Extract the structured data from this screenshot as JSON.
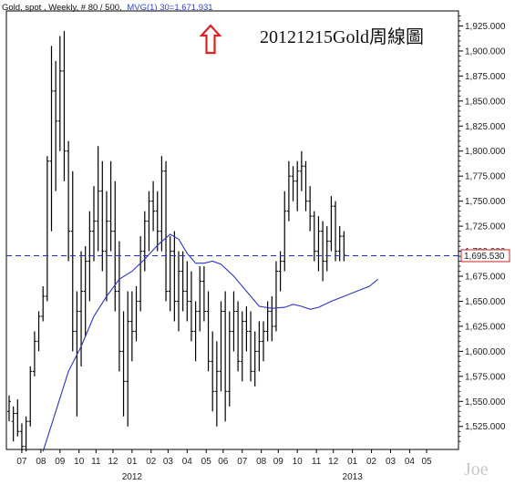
{
  "chart_data": {
    "type": "bar",
    "subtype": "ohlc-bars",
    "header": {
      "instrument": "Gold, spot , Weekly, # 80 / 500,",
      "indicator": "MVG(1) 30=1,671.931"
    },
    "title": "20121215Gold周線圖",
    "watermark": "Joe",
    "ylim": [
      1502,
      1940
    ],
    "y_ticks": [
      {
        "v": 1925,
        "label": "1,925.000"
      },
      {
        "v": 1900,
        "label": "1,900.000"
      },
      {
        "v": 1875,
        "label": "1,875.000"
      },
      {
        "v": 1850,
        "label": "1,850.000"
      },
      {
        "v": 1825,
        "label": "1,825.000"
      },
      {
        "v": 1800,
        "label": "1,800.000"
      },
      {
        "v": 1775,
        "label": "1,775.000"
      },
      {
        "v": 1750,
        "label": "1,750.000"
      },
      {
        "v": 1725,
        "label": "1,725.000"
      },
      {
        "v": 1700,
        "label": "1,700.000"
      },
      {
        "v": 1675,
        "label": "1,675.000"
      },
      {
        "v": 1650,
        "label": "1,650.000"
      },
      {
        "v": 1625,
        "label": "1,625.000"
      },
      {
        "v": 1600,
        "label": "1,600.000"
      },
      {
        "v": 1575,
        "label": "1,575.000"
      },
      {
        "v": 1550,
        "label": "1,550.000"
      },
      {
        "v": 1525,
        "label": "1,525.000"
      }
    ],
    "x_ticks": [
      {
        "bar": 3,
        "label": "07"
      },
      {
        "bar": 7.5,
        "label": "08"
      },
      {
        "bar": 12,
        "label": "09"
      },
      {
        "bar": 16.5,
        "label": "10"
      },
      {
        "bar": 20.5,
        "label": "11"
      },
      {
        "bar": 24.5,
        "label": "12"
      },
      {
        "bar": 29,
        "label": "01"
      },
      {
        "bar": 33.5,
        "label": "02"
      },
      {
        "bar": 37.5,
        "label": "03"
      },
      {
        "bar": 42,
        "label": "04"
      },
      {
        "bar": 46.5,
        "label": "05"
      },
      {
        "bar": 50.5,
        "label": "06"
      },
      {
        "bar": 55,
        "label": "07"
      },
      {
        "bar": 59.5,
        "label": "08"
      },
      {
        "bar": 63.5,
        "label": "09"
      },
      {
        "bar": 68,
        "label": "10"
      },
      {
        "bar": 72.5,
        "label": "11"
      },
      {
        "bar": 76.5,
        "label": "12"
      },
      {
        "bar": 81,
        "label": "01"
      },
      {
        "bar": 85.5,
        "label": "02"
      },
      {
        "bar": 90,
        "label": "03"
      },
      {
        "bar": 94.5,
        "label": "04"
      },
      {
        "bar": 98.5,
        "label": "05"
      }
    ],
    "year_labels": [
      {
        "bar": 29,
        "label": "2012"
      },
      {
        "bar": 81,
        "label": "2013"
      }
    ],
    "last_price": {
      "value": 1695.53,
      "label": "1,695.530"
    },
    "bars": [
      [
        1540,
        1556,
        1530,
        1550
      ],
      [
        1530,
        1545,
        1510,
        1538
      ],
      [
        1538,
        1552,
        1515,
        1520
      ],
      [
        1520,
        1528,
        1500,
        1505
      ],
      [
        1505,
        1535,
        1500,
        1530
      ],
      [
        1530,
        1585,
        1525,
        1580
      ],
      [
        1580,
        1620,
        1575,
        1610
      ],
      [
        1610,
        1640,
        1600,
        1635
      ],
      [
        1635,
        1665,
        1630,
        1655
      ],
      [
        1655,
        1795,
        1650,
        1790
      ],
      [
        1790,
        1905,
        1720,
        1860
      ],
      [
        1860,
        1890,
        1760,
        1830
      ],
      [
        1830,
        1915,
        1800,
        1880
      ],
      [
        1880,
        1920,
        1770,
        1800
      ],
      [
        1800,
        1810,
        1690,
        1720
      ],
      [
        1720,
        1780,
        1600,
        1620
      ],
      [
        1620,
        1660,
        1535,
        1640
      ],
      [
        1640,
        1700,
        1585,
        1660
      ],
      [
        1660,
        1705,
        1615,
        1690
      ],
      [
        1690,
        1740,
        1650,
        1720
      ],
      [
        1720,
        1765,
        1690,
        1730
      ],
      [
        1730,
        1805,
        1700,
        1760
      ],
      [
        1760,
        1790,
        1680,
        1700
      ],
      [
        1700,
        1760,
        1650,
        1730
      ],
      [
        1730,
        1790,
        1700,
        1720
      ],
      [
        1720,
        1770,
        1640,
        1660
      ],
      [
        1660,
        1710,
        1580,
        1600
      ],
      [
        1600,
        1640,
        1535,
        1570
      ],
      [
        1570,
        1660,
        1525,
        1630
      ],
      [
        1630,
        1660,
        1590,
        1620
      ],
      [
        1620,
        1665,
        1610,
        1650
      ],
      [
        1650,
        1715,
        1640,
        1700
      ],
      [
        1700,
        1740,
        1680,
        1730
      ],
      [
        1730,
        1760,
        1700,
        1750
      ],
      [
        1750,
        1770,
        1720,
        1740
      ],
      [
        1740,
        1760,
        1700,
        1720
      ],
      [
        1720,
        1795,
        1700,
        1780
      ],
      [
        1780,
        1790,
        1650,
        1660
      ],
      [
        1660,
        1715,
        1640,
        1700
      ],
      [
        1700,
        1720,
        1630,
        1650
      ],
      [
        1650,
        1700,
        1620,
        1680
      ],
      [
        1680,
        1700,
        1640,
        1660
      ],
      [
        1660,
        1690,
        1630,
        1650
      ],
      [
        1650,
        1680,
        1610,
        1620
      ],
      [
        1620,
        1650,
        1590,
        1640
      ],
      [
        1640,
        1685,
        1620,
        1670
      ],
      [
        1670,
        1685,
        1630,
        1640
      ],
      [
        1640,
        1660,
        1580,
        1590
      ],
      [
        1590,
        1620,
        1540,
        1560
      ],
      [
        1560,
        1610,
        1525,
        1580
      ],
      [
        1580,
        1650,
        1560,
        1640
      ],
      [
        1640,
        1660,
        1530,
        1560
      ],
      [
        1560,
        1640,
        1545,
        1620
      ],
      [
        1620,
        1660,
        1600,
        1640
      ],
      [
        1640,
        1650,
        1580,
        1590
      ],
      [
        1590,
        1640,
        1570,
        1630
      ],
      [
        1630,
        1645,
        1600,
        1620
      ],
      [
        1620,
        1640,
        1570,
        1580
      ],
      [
        1580,
        1620,
        1565,
        1600
      ],
      [
        1600,
        1630,
        1580,
        1610
      ],
      [
        1610,
        1630,
        1590,
        1620
      ],
      [
        1620,
        1650,
        1610,
        1640
      ],
      [
        1640,
        1655,
        1610,
        1625
      ],
      [
        1625,
        1690,
        1620,
        1680
      ],
      [
        1680,
        1700,
        1660,
        1690
      ],
      [
        1690,
        1760,
        1680,
        1740
      ],
      [
        1740,
        1790,
        1730,
        1775
      ],
      [
        1775,
        1785,
        1750,
        1770
      ],
      [
        1770,
        1790,
        1740,
        1780
      ],
      [
        1780,
        1800,
        1760,
        1785
      ],
      [
        1785,
        1790,
        1740,
        1750
      ],
      [
        1750,
        1765,
        1720,
        1735
      ],
      [
        1735,
        1740,
        1690,
        1700
      ],
      [
        1700,
        1735,
        1680,
        1720
      ],
      [
        1720,
        1730,
        1670,
        1690
      ],
      [
        1690,
        1725,
        1680,
        1710
      ],
      [
        1710,
        1755,
        1700,
        1745
      ],
      [
        1745,
        1750,
        1690,
        1700
      ],
      [
        1700,
        1725,
        1690,
        1715
      ],
      [
        1715,
        1720,
        1690,
        1696
      ]
    ],
    "ma_line": [
      [
        8,
        1500
      ],
      [
        11,
        1540
      ],
      [
        14,
        1580
      ],
      [
        17,
        1605
      ],
      [
        20,
        1635
      ],
      [
        23,
        1655
      ],
      [
        26,
        1672
      ],
      [
        29,
        1680
      ],
      [
        32,
        1692
      ],
      [
        35,
        1706
      ],
      [
        38,
        1717
      ],
      [
        40,
        1712
      ],
      [
        42,
        1698
      ],
      [
        44,
        1688
      ],
      [
        46,
        1688
      ],
      [
        48,
        1690
      ],
      [
        50,
        1687
      ],
      [
        53,
        1675
      ],
      [
        56,
        1660
      ],
      [
        59,
        1645
      ],
      [
        62,
        1643
      ],
      [
        65,
        1644
      ],
      [
        67,
        1647
      ],
      [
        69,
        1645
      ],
      [
        71,
        1642
      ],
      [
        73,
        1644
      ],
      [
        76,
        1650
      ],
      [
        79,
        1655
      ],
      [
        82,
        1660
      ],
      [
        85,
        1665
      ],
      [
        87,
        1672
      ]
    ],
    "colors": {
      "bars": "#000000",
      "ma": "#2a35c8",
      "last_line": "#2030d0",
      "arrow": "#e02020",
      "header_indicator": "#3344cc",
      "price_box": "#d42020"
    }
  }
}
